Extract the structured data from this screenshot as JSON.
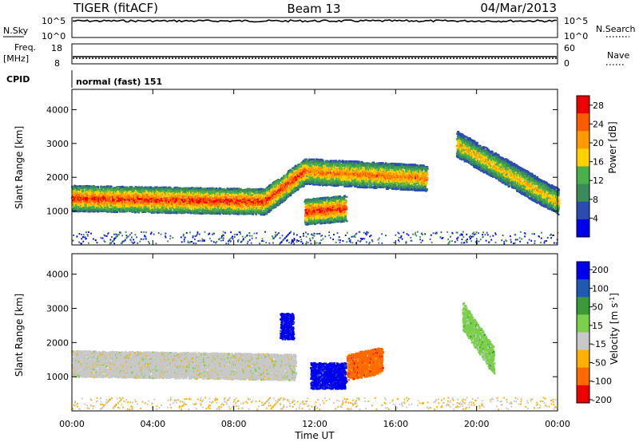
{
  "header": {
    "title_left": "TIGER (fitACF)",
    "title_center": "Beam 13",
    "title_right": "04/Mar/2013"
  },
  "panels": {
    "nsky": {
      "left_label": "N.Sky",
      "left_ticks": [
        "10^5",
        "10^0"
      ],
      "right_ticks": [
        "10^5",
        "10^0"
      ],
      "right_label": "N.Search"
    },
    "freq": {
      "left_label_1": "Freq.",
      "left_label_2": "[MHz]",
      "left_ticks": [
        "18",
        "8"
      ],
      "right_ticks": [
        "60",
        "0"
      ],
      "right_label": "Nave"
    },
    "cpid": {
      "left_label": "CPID",
      "text": "normal (fast) 151"
    }
  },
  "chart_data": [
    {
      "type": "heatmap",
      "title": "",
      "xlabel": "Time UT",
      "ylabel": "Slant Range [km]",
      "xlim": [
        "00:00",
        "24:00"
      ],
      "ylim": [
        0,
        4600
      ],
      "x_ticks": [
        "00:00",
        "04:00",
        "08:00",
        "12:00",
        "16:00",
        "20:00",
        "00:00"
      ],
      "y_ticks": [
        1000,
        2000,
        3000,
        4000
      ],
      "colorbar": {
        "label": "Power [dB]",
        "range": [
          0,
          30
        ],
        "ticks": [
          4,
          8,
          12,
          16,
          20,
          24,
          28
        ],
        "colors": [
          "#0000ee",
          "#2a4cb0",
          "#3a8a5a",
          "#4ab04a",
          "#ffd100",
          "#ff9a00",
          "#ff5a00",
          "#ee0000"
        ]
      },
      "features": [
        {
          "name": "main band",
          "t_start_h": 0.0,
          "t_end_h": 9.5,
          "range_start_km": 1400,
          "range_end_km": 1300,
          "max_power_db": 28
        },
        {
          "name": "rising band",
          "t_start_h": 9.5,
          "t_end_h": 11.5,
          "range_start_km": 1300,
          "range_end_km": 2200,
          "max_power_db": 28
        },
        {
          "name": "upper band",
          "t_start_h": 11.5,
          "t_end_h": 17.5,
          "range_start_km": 2200,
          "range_end_km": 2000,
          "max_power_db": 24
        },
        {
          "name": "lower echo",
          "t_start_h": 11.5,
          "t_end_h": 13.5,
          "range_start_km": 1000,
          "range_end_km": 1100,
          "max_power_db": 28
        },
        {
          "name": "evening band",
          "t_start_h": 19.0,
          "t_end_h": 24.0,
          "range_start_km": 3000,
          "range_end_km": 1300,
          "max_power_db": 20
        }
      ]
    },
    {
      "type": "heatmap",
      "title": "",
      "xlabel": "Time UT",
      "ylabel": "Slant Range [km]",
      "xlim": [
        "00:00",
        "24:00"
      ],
      "ylim": [
        0,
        4600
      ],
      "x_ticks": [
        "00:00",
        "04:00",
        "08:00",
        "12:00",
        "16:00",
        "20:00",
        "00:00"
      ],
      "y_ticks": [
        1000,
        2000,
        3000,
        4000
      ],
      "colorbar": {
        "label": "Velocity [m s^-1]",
        "range": [
          -250,
          250
        ],
        "ticks": [
          200,
          100,
          50,
          15,
          -15,
          -50,
          -100,
          -200
        ],
        "colors": [
          "#0000ee",
          "#205ab0",
          "#3a9a3a",
          "#7ad04a",
          "#c8c8c8",
          "#ffb000",
          "#ff6a00",
          "#ee0000"
        ]
      },
      "features": [
        {
          "name": "ground scatter band",
          "t_start_h": 0.0,
          "t_end_h": 11.0,
          "range_start_km": 1400,
          "range_end_km": 1300,
          "velocity_ms": 0
        },
        {
          "name": "blue patch",
          "t_start_h": 10.3,
          "t_end_h": 10.9,
          "range_start_km": 2500,
          "range_end_km": 2500,
          "velocity_ms": 200
        },
        {
          "name": "blue lower patch",
          "t_start_h": 11.8,
          "t_end_h": 13.5,
          "range_start_km": 1050,
          "range_end_km": 1050,
          "velocity_ms": 200
        },
        {
          "name": "orange patch",
          "t_start_h": 13.6,
          "t_end_h": 15.3,
          "range_start_km": 1300,
          "range_end_km": 1500,
          "velocity_ms": -100
        },
        {
          "name": "green evening band",
          "t_start_h": 19.3,
          "t_end_h": 20.8,
          "range_start_km": 2800,
          "range_end_km": 1500,
          "velocity_ms": 50
        }
      ]
    }
  ]
}
